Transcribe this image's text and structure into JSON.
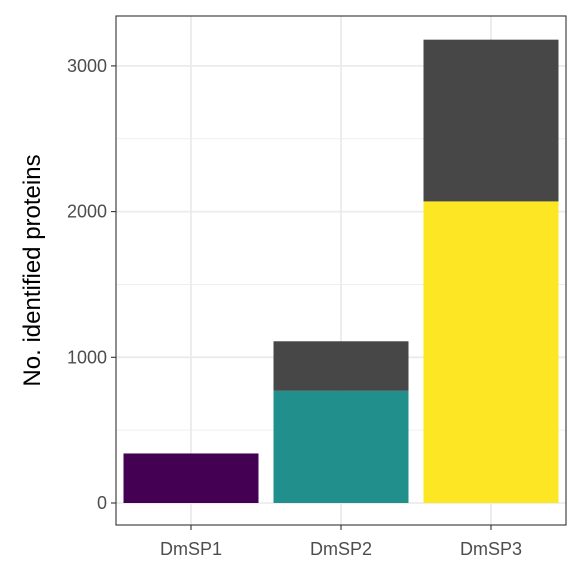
{
  "chart_data": {
    "type": "bar",
    "stacked": true,
    "title": "",
    "xlabel": "",
    "ylabel": "No. identified proteins",
    "categories": [
      "DmSP1",
      "DmSP2",
      "DmSP3"
    ],
    "ylim": [
      0,
      3250
    ],
    "yticks": [
      0,
      1000,
      2000,
      3000
    ],
    "grid": true,
    "legend": "none",
    "bars": [
      {
        "category": "DmSP1",
        "segments": [
          {
            "value": 340,
            "color": "#440154"
          }
        ]
      },
      {
        "category": "DmSP2",
        "segments": [
          {
            "value": 770,
            "color": "#21908C"
          },
          {
            "value": 340,
            "color": "#474747"
          }
        ]
      },
      {
        "category": "DmSP3",
        "segments": [
          {
            "value": 2070,
            "color": "#FDE725"
          },
          {
            "value": 1110,
            "color": "#474747"
          }
        ]
      }
    ]
  }
}
